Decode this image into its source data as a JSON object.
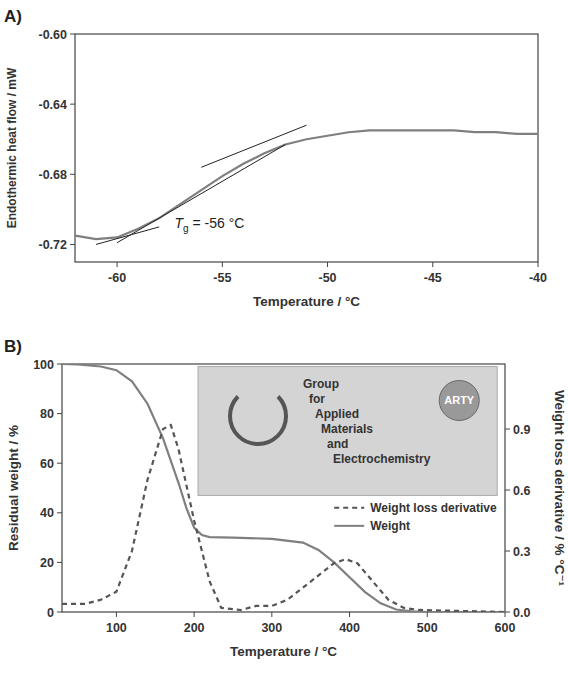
{
  "chart_data": [
    {
      "type": "line",
      "panel_label": "A)",
      "x_label": "Temperature / °C",
      "y_label": "Endothermic heat flow / mW",
      "xlim": [
        -62,
        -40
      ],
      "xticks": [
        -60,
        -55,
        -50,
        -45,
        -40
      ],
      "ylim": [
        -0.73,
        -0.6
      ],
      "yticks": [
        {
          "value": -0.72,
          "label": "-0.72"
        },
        {
          "value": -0.68,
          "label": "-0.68"
        },
        {
          "value": -0.64,
          "label": "-0.64"
        },
        {
          "value": -0.6,
          "label": "-0.60"
        }
      ],
      "grid": false,
      "annotations": [
        "Tg = -56 °C"
      ],
      "series": [
        {
          "color": "#7f7f7f",
          "line_style": "solid",
          "x": [
            -62,
            -61,
            -60,
            -59,
            -58,
            -57,
            -56,
            -55,
            -54,
            -53,
            -52,
            -51,
            -50,
            -49,
            -48,
            -47,
            -46,
            -45,
            -44,
            -43,
            -42,
            -41,
            -40
          ],
          "values": [
            -0.715,
            -0.717,
            -0.716,
            -0.711,
            -0.705,
            -0.697,
            -0.689,
            -0.681,
            -0.674,
            -0.668,
            -0.663,
            -0.66,
            -0.658,
            -0.656,
            -0.655,
            -0.655,
            -0.655,
            -0.655,
            -0.655,
            -0.656,
            -0.656,
            -0.657,
            -0.657
          ]
        },
        {
          "color": "#222222",
          "line_style": "solid",
          "x": [
            -61,
            -58
          ],
          "values": [
            -0.72,
            -0.71
          ]
        },
        {
          "color": "#222222",
          "line_style": "solid",
          "x": [
            -60,
            -52
          ],
          "values": [
            -0.719,
            -0.663
          ]
        },
        {
          "color": "#222222",
          "line_style": "solid",
          "x": [
            -56,
            -51
          ],
          "values": [
            -0.676,
            -0.652
          ]
        }
      ]
    },
    {
      "type": "line",
      "panel_label": "B)",
      "x_label": "Temperature / °C",
      "y_label": "Residual weight / %",
      "y2_label": "Weight loss derivative / % °C⁻¹",
      "xlim": [
        30,
        600
      ],
      "xticks": [
        100,
        200,
        300,
        400,
        500,
        600
      ],
      "ylim": [
        0,
        100
      ],
      "yticks": [
        0,
        20,
        40,
        60,
        80,
        100
      ],
      "y2lim": [
        0,
        1.22
      ],
      "y2ticks": [
        {
          "value": 0,
          "label": "0.0"
        },
        {
          "value": 0.3,
          "label": "0.3"
        },
        {
          "value": 0.6,
          "label": "0.6"
        },
        {
          "value": 0.9,
          "label": "0.9"
        }
      ],
      "grid": false,
      "legend": "right",
      "annotations": [
        "Group",
        "for",
        "Applied",
        "Materials",
        "and",
        "Electrochemistry",
        "ARTY"
      ],
      "series": [
        {
          "name": "Weight",
          "color": "#7f7f7f",
          "line_style": "solid",
          "x": [
            30,
            50,
            80,
            100,
            120,
            140,
            160,
            180,
            190,
            200,
            210,
            220,
            250,
            300,
            340,
            360,
            380,
            400,
            420,
            440,
            460,
            480,
            500,
            600
          ],
          "values": [
            100,
            99.8,
            99,
            97.5,
            93,
            84,
            70,
            52,
            42,
            34,
            31,
            30.2,
            30,
            29.5,
            28,
            25,
            20,
            14,
            8,
            3.5,
            1,
            0.3,
            0,
            0
          ]
        },
        {
          "name": "Weight loss derivative",
          "axis": "y2",
          "color": "#555555",
          "line_style": "dashed",
          "x": [
            30,
            60,
            80,
            100,
            120,
            140,
            160,
            170,
            180,
            200,
            220,
            235,
            260,
            280,
            300,
            320,
            350,
            380,
            395,
            410,
            430,
            450,
            470,
            490,
            600
          ],
          "values": [
            0.04,
            0.04,
            0.06,
            0.1,
            0.3,
            0.65,
            0.9,
            0.92,
            0.8,
            0.45,
            0.15,
            0.02,
            0.01,
            0.03,
            0.03,
            0.06,
            0.15,
            0.24,
            0.26,
            0.24,
            0.15,
            0.06,
            0.02,
            0.01,
            0.0
          ]
        }
      ]
    }
  ]
}
